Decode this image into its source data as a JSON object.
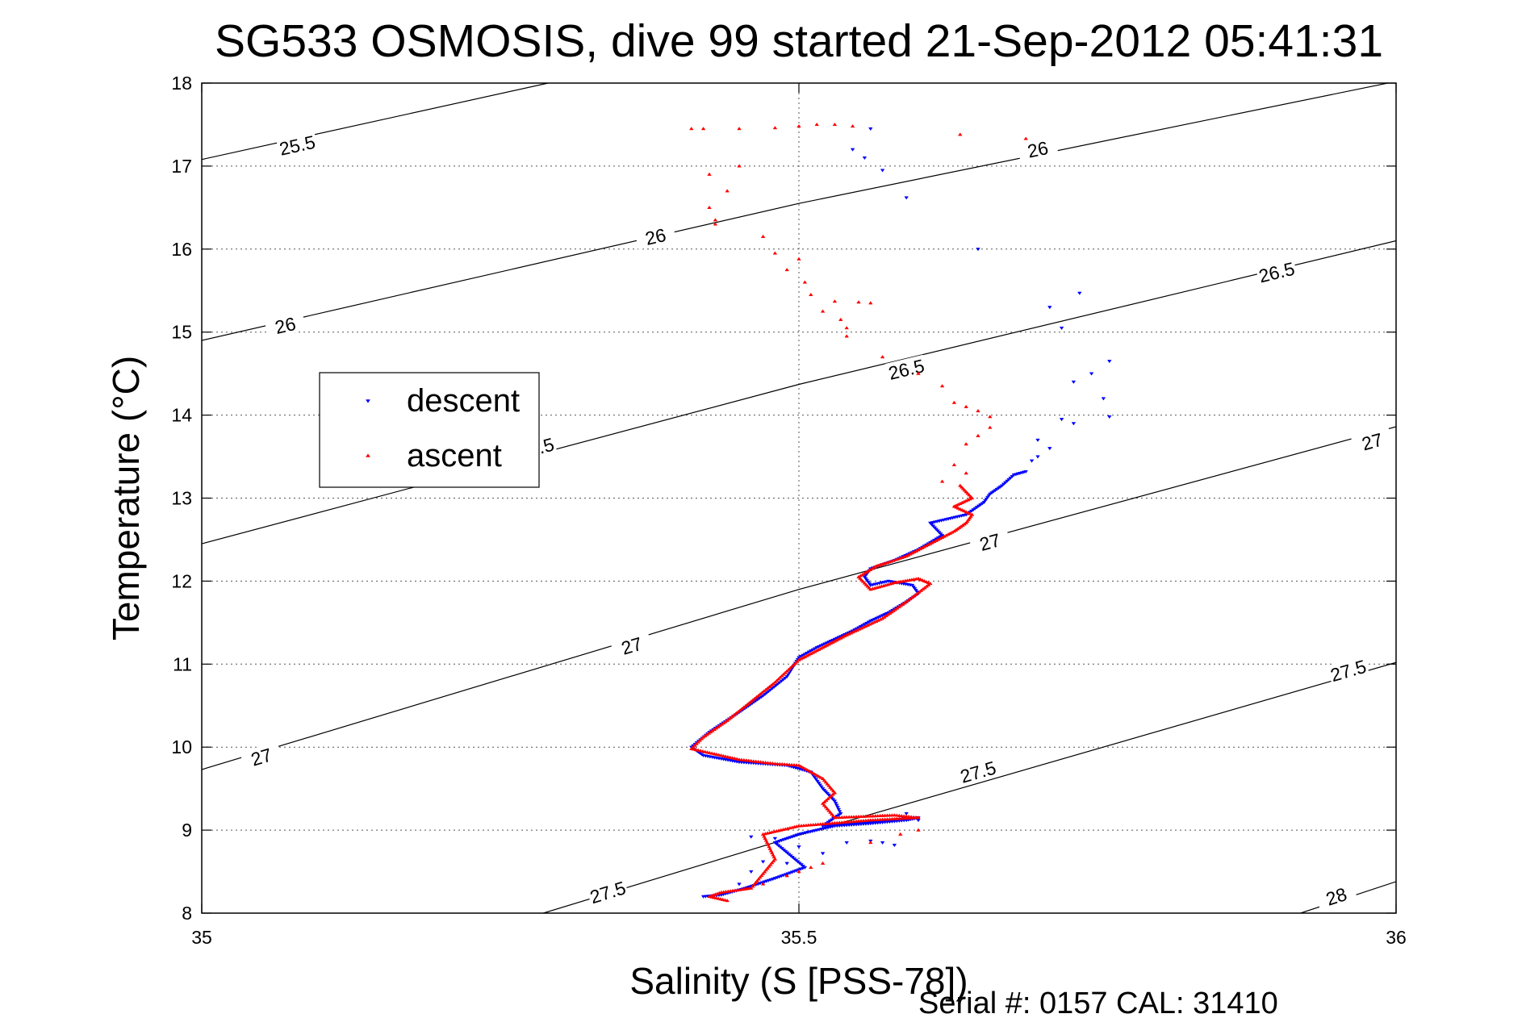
{
  "chart_data": {
    "type": "scatter",
    "title": "SG533 OSMOSIS, dive 99 started 21-Sep-2012 05:41:31",
    "xlabel": "Salinity (S [PSS-78])",
    "ylabel": "Temperature (°C)",
    "xlim": [
      35,
      36
    ],
    "ylim": [
      8,
      18
    ],
    "xticks": [
      35,
      35.5,
      36
    ],
    "xtick_labels": [
      "35",
      "35.5",
      "36"
    ],
    "yticks": [
      8,
      9,
      10,
      11,
      12,
      13,
      14,
      15,
      16,
      17,
      18
    ],
    "ytick_labels": [
      "8",
      "9",
      "10",
      "11",
      "12",
      "13",
      "14",
      "15",
      "16",
      "17",
      "18"
    ],
    "grid": true,
    "legend_position": "left",
    "footer": "Serial #: 0157  CAL: 31410",
    "contours": [
      {
        "label": "25.5",
        "points": [
          [
            35,
            17.08
          ],
          [
            35.29,
            18.0
          ]
        ],
        "labels_at": [
          [
            35.08,
            17.25
          ]
        ]
      },
      {
        "label": "26",
        "points": [
          [
            35,
            14.9
          ],
          [
            35.5,
            16.55
          ],
          [
            36,
            18.02
          ]
        ],
        "labels_at": [
          [
            35.07,
            15.08
          ],
          [
            35.38,
            16.15
          ],
          [
            35.7,
            17.2
          ]
        ]
      },
      {
        "label": "26.5",
        "points": [
          [
            35,
            12.45
          ],
          [
            35.5,
            14.37
          ],
          [
            36,
            16.1
          ]
        ],
        "labels_at": [
          [
            35.28,
            13.6
          ],
          [
            35.59,
            14.55
          ],
          [
            35.9,
            15.72
          ]
        ]
      },
      {
        "label": "27",
        "points": [
          [
            35,
            9.73
          ],
          [
            35.5,
            11.9
          ],
          [
            36,
            13.86
          ]
        ],
        "labels_at": [
          [
            35.05,
            9.88
          ],
          [
            35.36,
            11.22
          ],
          [
            35.66,
            12.47
          ],
          [
            35.98,
            13.68
          ]
        ]
      },
      {
        "label": "27.5",
        "points": [
          [
            35.286,
            8.0
          ],
          [
            35.5,
            8.94
          ],
          [
            36,
            11.02
          ]
        ],
        "labels_at": [
          [
            35.34,
            8.25
          ],
          [
            35.65,
            9.7
          ],
          [
            35.96,
            10.92
          ]
        ]
      },
      {
        "label": "28",
        "points": [
          [
            35.92,
            8.0
          ],
          [
            36,
            8.38
          ]
        ],
        "labels_at": [
          [
            35.95,
            8.2
          ]
        ]
      }
    ],
    "series": [
      {
        "name": "descent",
        "color": "#0000ff",
        "marker": "triangle-down",
        "path": [
          [
            35.42,
            8.2
          ],
          [
            35.435,
            8.22
          ],
          [
            35.455,
            8.3
          ],
          [
            35.48,
            8.42
          ],
          [
            35.505,
            8.55
          ],
          [
            35.48,
            8.85
          ],
          [
            35.5,
            8.95
          ],
          [
            35.53,
            9.05
          ],
          [
            35.56,
            9.08
          ],
          [
            35.59,
            9.12
          ],
          [
            35.6,
            9.15
          ],
          [
            35.56,
            9.1
          ],
          [
            35.52,
            9.05
          ],
          [
            35.535,
            9.2
          ],
          [
            35.53,
            9.35
          ],
          [
            35.52,
            9.5
          ],
          [
            35.51,
            9.7
          ],
          [
            35.49,
            9.78
          ],
          [
            35.45,
            9.82
          ],
          [
            35.42,
            9.9
          ],
          [
            35.41,
            10.0
          ],
          [
            35.425,
            10.18
          ],
          [
            35.45,
            10.42
          ],
          [
            35.47,
            10.62
          ],
          [
            35.49,
            10.85
          ],
          [
            35.5,
            11.08
          ],
          [
            35.515,
            11.2
          ],
          [
            35.53,
            11.3
          ],
          [
            35.545,
            11.4
          ],
          [
            35.56,
            11.52
          ],
          [
            35.575,
            11.62
          ],
          [
            35.59,
            11.75
          ],
          [
            35.6,
            11.85
          ],
          [
            35.595,
            11.95
          ],
          [
            35.575,
            12.0
          ],
          [
            35.56,
            11.95
          ],
          [
            35.555,
            12.05
          ],
          [
            35.56,
            12.15
          ],
          [
            35.58,
            12.25
          ],
          [
            35.6,
            12.38
          ],
          [
            35.62,
            12.55
          ],
          [
            35.61,
            12.7
          ],
          [
            35.625,
            12.75
          ],
          [
            35.64,
            12.8
          ],
          [
            35.655,
            12.95
          ],
          [
            35.66,
            13.05
          ],
          [
            35.67,
            13.15
          ],
          [
            35.68,
            13.28
          ],
          [
            35.69,
            13.32
          ]
        ],
        "scatter": [
          [
            35.56,
            17.45
          ],
          [
            35.545,
            17.2
          ],
          [
            35.555,
            17.1
          ],
          [
            35.57,
            16.95
          ],
          [
            35.59,
            16.62
          ],
          [
            35.65,
            16.0
          ],
          [
            35.71,
            15.3
          ],
          [
            35.735,
            15.47
          ],
          [
            35.72,
            15.05
          ],
          [
            35.76,
            14.65
          ],
          [
            35.745,
            14.5
          ],
          [
            35.73,
            14.4
          ],
          [
            35.755,
            14.2
          ],
          [
            35.76,
            13.98
          ],
          [
            35.72,
            13.95
          ],
          [
            35.73,
            13.9
          ],
          [
            35.7,
            13.7
          ],
          [
            35.71,
            13.6
          ],
          [
            35.695,
            13.45
          ],
          [
            35.7,
            13.5
          ],
          [
            35.54,
            8.85
          ],
          [
            35.56,
            8.87
          ],
          [
            35.57,
            8.85
          ],
          [
            35.58,
            8.82
          ],
          [
            35.52,
            8.72
          ],
          [
            35.47,
            8.62
          ],
          [
            35.46,
            8.5
          ],
          [
            35.45,
            8.35
          ],
          [
            35.6,
            9.12
          ],
          [
            35.59,
            9.2
          ],
          [
            35.48,
            8.9
          ],
          [
            35.46,
            8.92
          ],
          [
            35.5,
            8.8
          ],
          [
            35.49,
            8.6
          ]
        ]
      },
      {
        "name": "ascent",
        "color": "#ff0000",
        "marker": "triangle-up",
        "path": [
          [
            35.44,
            8.15
          ],
          [
            35.425,
            8.2
          ],
          [
            35.435,
            8.25
          ],
          [
            35.46,
            8.3
          ],
          [
            35.48,
            8.65
          ],
          [
            35.47,
            8.95
          ],
          [
            35.5,
            9.05
          ],
          [
            35.56,
            9.12
          ],
          [
            35.6,
            9.15
          ],
          [
            35.58,
            9.18
          ],
          [
            35.53,
            9.15
          ],
          [
            35.52,
            9.32
          ],
          [
            35.53,
            9.45
          ],
          [
            35.52,
            9.62
          ],
          [
            35.5,
            9.78
          ],
          [
            35.48,
            9.8
          ],
          [
            35.45,
            9.85
          ],
          [
            35.41,
            9.98
          ],
          [
            35.42,
            10.12
          ],
          [
            35.44,
            10.32
          ],
          [
            35.46,
            10.55
          ],
          [
            35.48,
            10.78
          ],
          [
            35.5,
            11.05
          ],
          [
            35.52,
            11.2
          ],
          [
            35.54,
            11.35
          ],
          [
            35.57,
            11.55
          ],
          [
            35.59,
            11.75
          ],
          [
            35.61,
            11.97
          ],
          [
            35.6,
            12.03
          ],
          [
            35.58,
            11.98
          ],
          [
            35.56,
            11.9
          ],
          [
            35.55,
            12.05
          ],
          [
            35.565,
            12.18
          ],
          [
            35.59,
            12.3
          ],
          [
            35.61,
            12.45
          ],
          [
            35.63,
            12.6
          ],
          [
            35.64,
            12.7
          ],
          [
            35.645,
            12.8
          ],
          [
            35.63,
            12.9
          ],
          [
            35.645,
            13.0
          ],
          [
            35.635,
            13.15
          ]
        ],
        "scatter": [
          [
            35.41,
            17.45
          ],
          [
            35.42,
            17.45
          ],
          [
            35.45,
            17.45
          ],
          [
            35.48,
            17.46
          ],
          [
            35.5,
            17.48
          ],
          [
            35.515,
            17.5
          ],
          [
            35.53,
            17.5
          ],
          [
            35.545,
            17.48
          ],
          [
            35.635,
            17.38
          ],
          [
            35.69,
            17.33
          ],
          [
            35.43,
            16.35
          ],
          [
            35.425,
            16.5
          ],
          [
            35.44,
            16.7
          ],
          [
            35.425,
            16.9
          ],
          [
            35.45,
            17.0
          ],
          [
            35.43,
            16.3
          ],
          [
            35.47,
            16.15
          ],
          [
            35.48,
            15.95
          ],
          [
            35.5,
            15.88
          ],
          [
            35.49,
            15.75
          ],
          [
            35.505,
            15.6
          ],
          [
            35.51,
            15.45
          ],
          [
            35.53,
            15.37
          ],
          [
            35.55,
            15.36
          ],
          [
            35.56,
            15.35
          ],
          [
            35.52,
            15.25
          ],
          [
            35.535,
            15.15
          ],
          [
            35.54,
            15.05
          ],
          [
            35.54,
            14.95
          ],
          [
            35.57,
            14.7
          ],
          [
            35.6,
            14.5
          ],
          [
            35.62,
            14.35
          ],
          [
            35.63,
            14.15
          ],
          [
            35.64,
            14.1
          ],
          [
            35.65,
            14.05
          ],
          [
            35.66,
            13.98
          ],
          [
            35.66,
            13.85
          ],
          [
            35.65,
            13.75
          ],
          [
            35.64,
            13.65
          ],
          [
            35.63,
            13.4
          ],
          [
            35.64,
            13.3
          ],
          [
            35.62,
            13.2
          ],
          [
            35.6,
            9.0
          ],
          [
            35.585,
            8.95
          ],
          [
            35.56,
            8.85
          ],
          [
            35.52,
            8.6
          ],
          [
            35.49,
            8.45
          ],
          [
            35.51,
            8.55
          ],
          [
            35.47,
            8.35
          ],
          [
            35.5,
            8.5
          ]
        ]
      }
    ]
  }
}
